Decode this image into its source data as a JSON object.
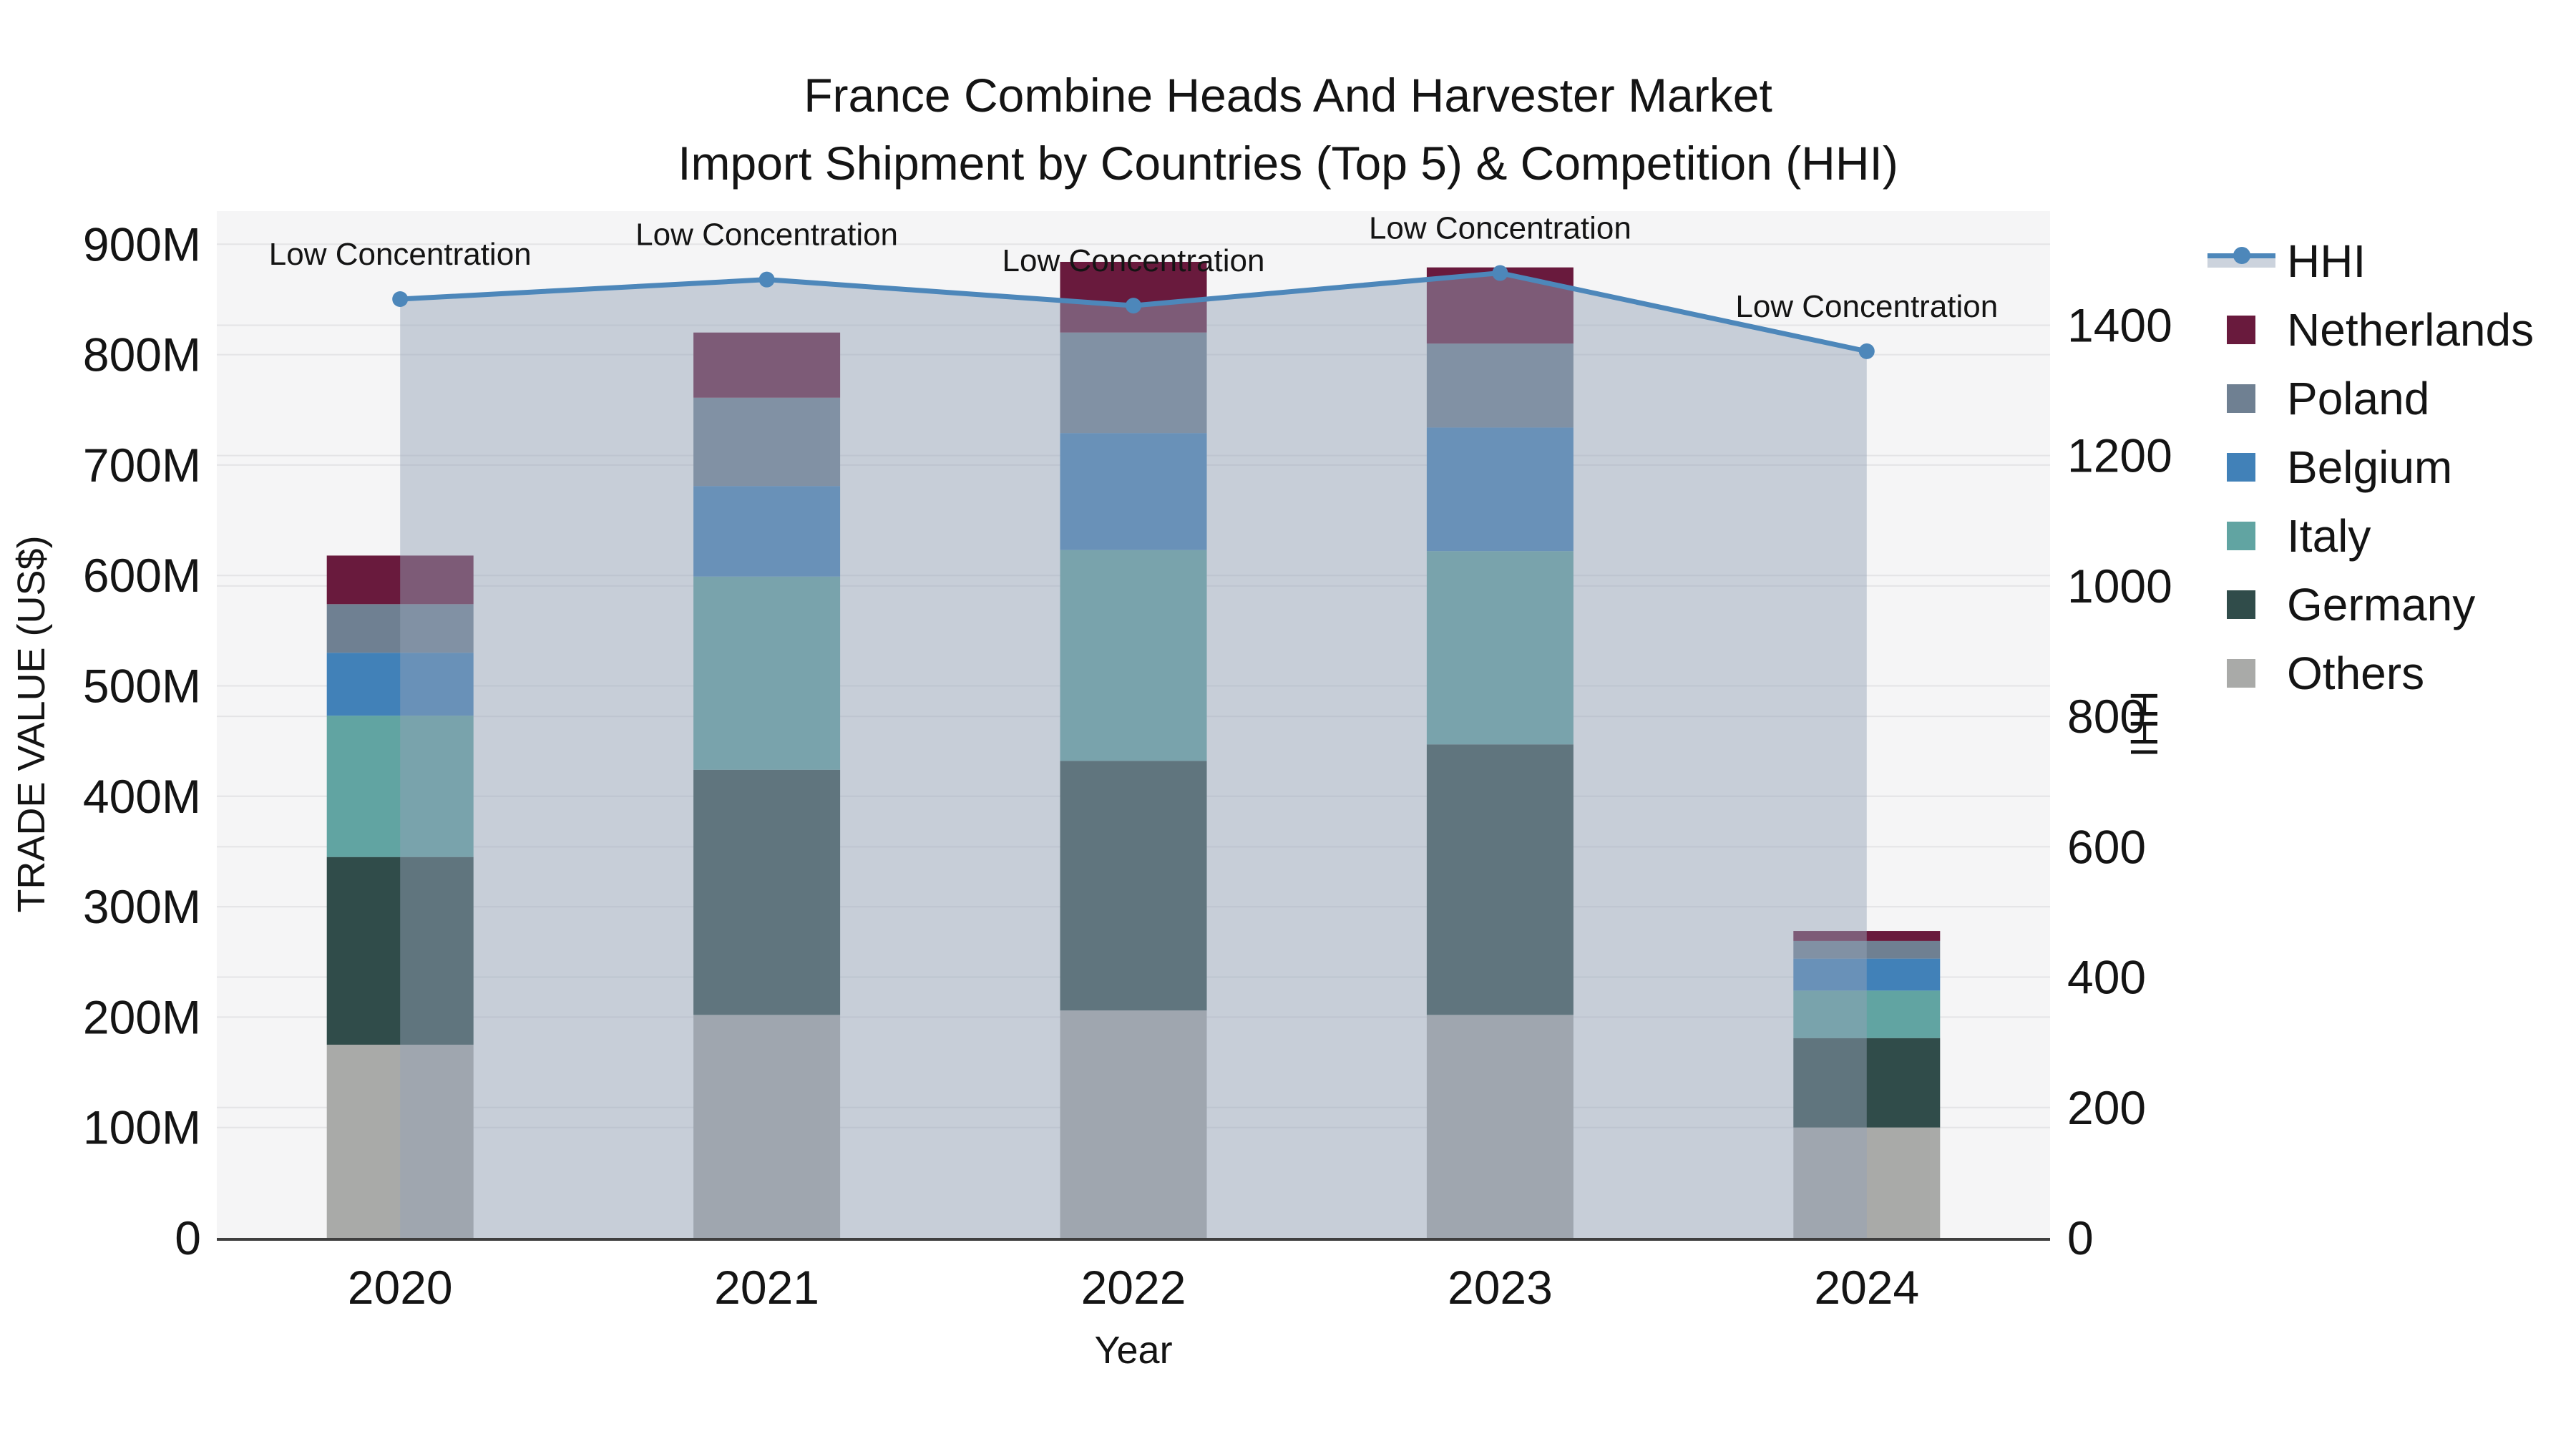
{
  "title": {
    "line1": "France Combine Heads And Harvester Market",
    "line2": "Import Shipment by Countries (Top 5) & Competition (HHI)"
  },
  "axes": {
    "left": {
      "title": "TRADE VALUE (US$)",
      "tick_values": [
        0,
        100,
        200,
        300,
        400,
        500,
        600,
        700,
        800,
        900
      ],
      "tick_labels": [
        "0",
        "100M",
        "200M",
        "300M",
        "400M",
        "500M",
        "600M",
        "700M",
        "800M",
        "900M"
      ],
      "range": [
        0,
        930
      ]
    },
    "right": {
      "title": "HHI",
      "tick_values": [
        0,
        200,
        400,
        600,
        800,
        1000,
        1200,
        1400
      ],
      "tick_labels": [
        "0",
        "200",
        "400",
        "600",
        "800",
        "1000",
        "1200",
        "1400"
      ],
      "range": [
        0,
        1575
      ]
    },
    "x": {
      "title": "Year",
      "categories": [
        "2020",
        "2021",
        "2022",
        "2023",
        "2024"
      ]
    }
  },
  "chart_data": {
    "type": "bar",
    "subtype": "stacked-bars-with-line",
    "categories": [
      "2020",
      "2021",
      "2022",
      "2023",
      "2024"
    ],
    "series": [
      {
        "name": "Others",
        "kind": "bar",
        "color": "#a9aaa8",
        "values": [
          175,
          202,
          206,
          202,
          100
        ]
      },
      {
        "name": "Germany",
        "kind": "bar",
        "color": "#304c4a",
        "values": [
          170,
          222,
          226,
          245,
          81
        ]
      },
      {
        "name": "Italy",
        "kind": "bar",
        "color": "#61a4a2",
        "values": [
          128,
          175,
          191,
          175,
          43
        ]
      },
      {
        "name": "Belgium",
        "kind": "bar",
        "color": "#4181b8",
        "values": [
          57,
          82,
          106,
          112,
          29
        ]
      },
      {
        "name": "Poland",
        "kind": "bar",
        "color": "#6f8092",
        "values": [
          44,
          80,
          91,
          76,
          16
        ]
      },
      {
        "name": "Netherlands",
        "kind": "bar",
        "color": "#691a3d",
        "values": [
          44,
          59,
          64,
          69,
          9
        ]
      }
    ],
    "bar_totals": [
      618,
      820,
      884,
      879,
      278
    ],
    "line": {
      "name": "HHI",
      "axis": "right",
      "color": "#4d87ba",
      "area_fill": "rgba(148,163,184,0.48)",
      "values": [
        1440,
        1470,
        1430,
        1480,
        1360
      ]
    },
    "annotations": [
      "Low Concentration",
      "Low Concentration",
      "Low Concentration",
      "Low Concentration",
      "Low Concentration"
    ],
    "title": "France Combine Heads And Harvester Market Import Shipment by Countries (Top 5) & Competition (HHI)",
    "xlabel": "Year",
    "ylabel_left": "TRADE VALUE (US$)",
    "ylabel_right": "HHI",
    "ylim_left": [
      0,
      930
    ],
    "ylim_right": [
      0,
      1575
    ],
    "grid": true,
    "legend_position": "right"
  },
  "legend": {
    "items": [
      {
        "label": "HHI",
        "kind": "line",
        "color": "#4d87ba",
        "band": "#ccd3dd"
      },
      {
        "label": "Netherlands",
        "kind": "bar",
        "color": "#691a3d"
      },
      {
        "label": "Poland",
        "kind": "bar",
        "color": "#6f8092"
      },
      {
        "label": "Belgium",
        "kind": "bar",
        "color": "#4181b8"
      },
      {
        "label": "Italy",
        "kind": "bar",
        "color": "#61a4a2"
      },
      {
        "label": "Germany",
        "kind": "bar",
        "color": "#304c4a"
      },
      {
        "label": "Others",
        "kind": "bar",
        "color": "#a9aaa8"
      }
    ]
  },
  "colors": {
    "plot_bg": "#f5f5f6",
    "grid": "#e4e4e6",
    "axis_line": "#3f3f3f",
    "text": "#141414",
    "hhi_line": "#4d87ba",
    "hhi_area": "rgba(148,163,184,0.48)",
    "hhi_legend_band": "#ccd3dd"
  }
}
